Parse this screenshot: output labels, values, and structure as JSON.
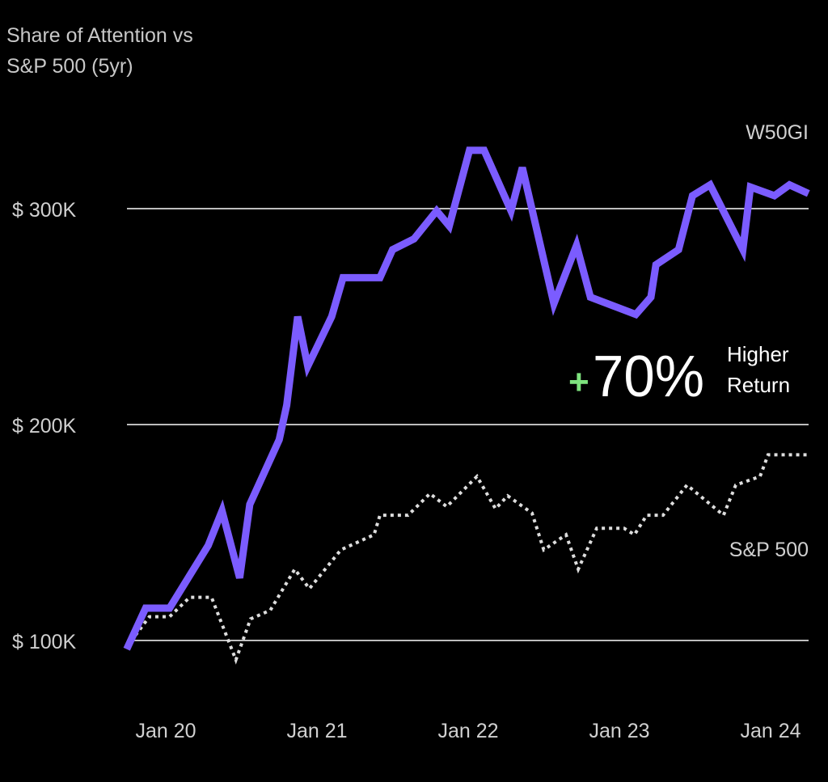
{
  "chart_data": {
    "type": "line",
    "title": "Share of Attention vs S&P 500 (5yr)",
    "title_lines": [
      "Share of Attention vs",
      "S&P 500 (5yr)"
    ],
    "xlabel": "",
    "ylabel": "",
    "x_ticks": [
      {
        "label": "Jan 20",
        "date": "2020-01-01"
      },
      {
        "label": "Jan 21",
        "date": "2021-01-01"
      },
      {
        "label": "Jan 22",
        "date": "2022-01-01"
      },
      {
        "label": "Jan 23",
        "date": "2023-01-01"
      },
      {
        "label": "Jan 24",
        "date": "2024-01-01"
      }
    ],
    "y_ticks": [
      {
        "label": "$ 100K",
        "value": 100
      },
      {
        "label": "$ 200K",
        "value": 200
      },
      {
        "label": "$ 300K",
        "value": 300
      }
    ],
    "y_unit": "thousand USD",
    "grid": "horizontal",
    "legend": "inline labels at right end of series",
    "series": [
      {
        "name": "W50GI",
        "color": "#7b5cff",
        "style": "solid",
        "points": [
          [
            "2019-09-28",
            96
          ],
          [
            "2019-11-13",
            115
          ],
          [
            "2020-01-10",
            115
          ],
          [
            "2020-04-12",
            144
          ],
          [
            "2020-05-15",
            160
          ],
          [
            "2020-06-27",
            129
          ],
          [
            "2020-07-21",
            163
          ],
          [
            "2020-10-01",
            193
          ],
          [
            "2020-10-19",
            209
          ],
          [
            "2020-11-15",
            250
          ],
          [
            "2020-12-09",
            227
          ],
          [
            "2021-02-06",
            250
          ],
          [
            "2021-03-03",
            268
          ],
          [
            "2021-06-01",
            268
          ],
          [
            "2021-07-01",
            281
          ],
          [
            "2021-08-22",
            286
          ],
          [
            "2021-10-16",
            299
          ],
          [
            "2021-11-16",
            292
          ],
          [
            "2022-01-04",
            327
          ],
          [
            "2022-02-09",
            327
          ],
          [
            "2022-04-13",
            299
          ],
          [
            "2022-05-10",
            319
          ],
          [
            "2022-07-25",
            256
          ],
          [
            "2022-09-19",
            283
          ],
          [
            "2022-10-22",
            259
          ],
          [
            "2023-02-10",
            251
          ],
          [
            "2023-03-16",
            259
          ],
          [
            "2023-03-28",
            274
          ],
          [
            "2023-05-22",
            281
          ],
          [
            "2023-06-25",
            306
          ],
          [
            "2023-08-07",
            311
          ],
          [
            "2023-10-25",
            281
          ],
          [
            "2023-11-13",
            310
          ],
          [
            "2024-01-10",
            306
          ],
          [
            "2024-02-16",
            311
          ],
          [
            "2024-04-01",
            307
          ]
        ]
      },
      {
        "name": "S&P 500",
        "color": "#dddddd",
        "style": "dotted",
        "points": [
          [
            "2019-09-28",
            97
          ],
          [
            "2019-11-22",
            111
          ],
          [
            "2020-01-10",
            111
          ],
          [
            "2020-02-28",
            120
          ],
          [
            "2020-04-20",
            120
          ],
          [
            "2020-06-18",
            91
          ],
          [
            "2020-07-23",
            110
          ],
          [
            "2020-09-10",
            114
          ],
          [
            "2020-11-08",
            133
          ],
          [
            "2020-12-13",
            124
          ],
          [
            "2021-02-28",
            142
          ],
          [
            "2021-05-17",
            149
          ],
          [
            "2021-06-01",
            158
          ],
          [
            "2021-08-08",
            158
          ],
          [
            "2021-09-30",
            168
          ],
          [
            "2021-11-10",
            162
          ],
          [
            "2022-01-22",
            176
          ],
          [
            "2022-03-06",
            161
          ],
          [
            "2022-04-05",
            167
          ],
          [
            "2022-06-03",
            159
          ],
          [
            "2022-07-01",
            142
          ],
          [
            "2022-08-24",
            149
          ],
          [
            "2022-09-23",
            133
          ],
          [
            "2022-11-07",
            152
          ],
          [
            "2023-01-12",
            152
          ],
          [
            "2023-02-07",
            149
          ],
          [
            "2023-03-06",
            158
          ],
          [
            "2023-04-15",
            158
          ],
          [
            "2023-06-12",
            172
          ],
          [
            "2023-09-09",
            158
          ],
          [
            "2023-10-08",
            172
          ],
          [
            "2023-12-06",
            176
          ],
          [
            "2023-12-25",
            186
          ],
          [
            "2024-03-28",
            186
          ]
        ]
      }
    ],
    "annotation": {
      "plus": "+",
      "value": "70%",
      "line1": "Higher",
      "line2": "Return",
      "plus_color": "#7ee37e"
    }
  }
}
